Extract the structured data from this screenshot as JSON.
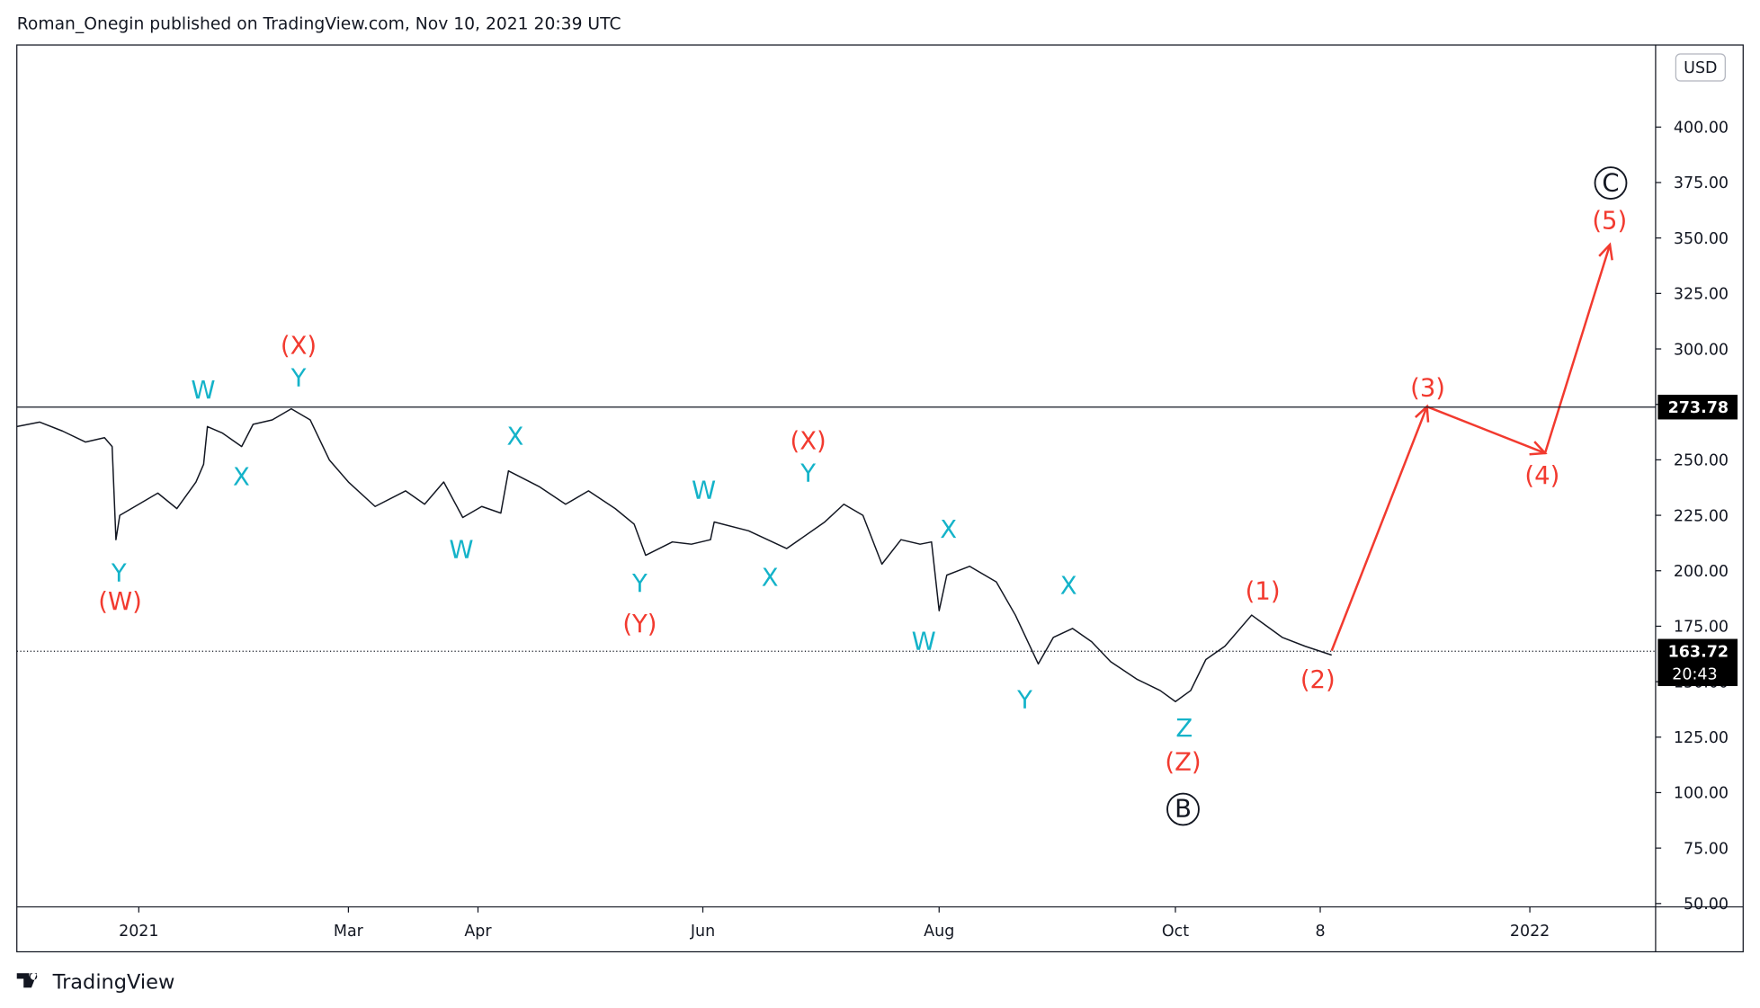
{
  "header": "Roman_Onegin published on TradingView.com, Nov 10, 2021 20:39 UTC",
  "footer": "TradingView",
  "chart_data": {
    "type": "line",
    "currency": "USD",
    "xlim": [
      -32,
      398
    ],
    "ylim": [
      50,
      437
    ],
    "xticks": [
      {
        "value": 0,
        "label": "2021"
      },
      {
        "value": 55,
        "label": "Mar"
      },
      {
        "value": 89,
        "label": "Apr"
      },
      {
        "value": 148,
        "label": "Jun"
      },
      {
        "value": 210,
        "label": "Aug"
      },
      {
        "value": 272,
        "label": "Oct"
      },
      {
        "value": 310,
        "label": "8"
      },
      {
        "value": 365,
        "label": "2022"
      }
    ],
    "yticks": [
      {
        "value": 50,
        "label": "50.00"
      },
      {
        "value": 75,
        "label": "75.00"
      },
      {
        "value": 100,
        "label": "100.00"
      },
      {
        "value": 125,
        "label": "125.00"
      },
      {
        "value": 150,
        "label": "150.00"
      },
      {
        "value": 175,
        "label": "175.00"
      },
      {
        "value": 200,
        "label": "200.00"
      },
      {
        "value": 225,
        "label": "225.00"
      },
      {
        "value": 250,
        "label": "250.00"
      },
      {
        "value": 275,
        "label": "275.00"
      },
      {
        "value": 300,
        "label": "300.00"
      },
      {
        "value": 325,
        "label": "325.00"
      },
      {
        "value": 350,
        "label": "350.00"
      },
      {
        "value": 375,
        "label": "375.00"
      },
      {
        "value": 400,
        "label": "400.00"
      }
    ],
    "series": [
      {
        "color": "#131722",
        "x": [
          -32,
          -26,
          -20,
          -14,
          -9,
          -7,
          -6,
          -5,
          0,
          5,
          10,
          15,
          17,
          18,
          22,
          27,
          30,
          35,
          40,
          45,
          50,
          55,
          62,
          70,
          75,
          80,
          85,
          90,
          95,
          97,
          105,
          112,
          118,
          125,
          130,
          133,
          140,
          145,
          150,
          151,
          160,
          170,
          180,
          185,
          190,
          195,
          200,
          205,
          208,
          210,
          212,
          218,
          225,
          230,
          236,
          240,
          245,
          250,
          255,
          262,
          268,
          272,
          276,
          280,
          285,
          292,
          300,
          306,
          313
        ],
        "values": [
          265,
          267,
          263,
          258,
          260,
          256,
          214,
          225,
          230,
          235,
          228,
          240,
          248,
          265,
          262,
          256,
          266,
          268,
          273,
          268,
          250,
          240,
          229,
          236,
          230,
          240,
          224,
          229,
          226,
          245,
          238,
          230,
          236,
          228,
          221,
          207,
          213,
          212,
          214,
          222,
          218,
          210,
          222,
          230,
          225,
          203,
          214,
          212,
          213,
          182,
          198,
          202,
          195,
          180,
          158,
          170,
          174,
          168,
          159,
          151,
          146,
          141,
          146,
          160,
          166,
          180,
          170,
          166,
          162
        ]
      },
      {
        "color": "#f23a2f",
        "x": [
          313,
          338,
          369,
          386
        ],
        "values": [
          164,
          274,
          253,
          347
        ]
      }
    ],
    "hlines": [
      {
        "value": 273.78,
        "label": "273.78"
      },
      {
        "value": 163.72,
        "label": "163.72",
        "time": "20:43"
      }
    ],
    "annotations": [
      {
        "text": "W",
        "color": "#14b3c9"
      },
      {
        "text": "(X)",
        "color": "#f23a2f"
      },
      {
        "text": "Y",
        "color": "#14b3c9"
      },
      {
        "text": "X",
        "color": "#14b3c9"
      },
      {
        "text": "Y",
        "color": "#14b3c9"
      },
      {
        "text": "(W)",
        "color": "#f23a2f"
      },
      {
        "text": "X",
        "color": "#14b3c9"
      },
      {
        "text": "W",
        "color": "#14b3c9"
      },
      {
        "text": "Y",
        "color": "#14b3c9"
      },
      {
        "text": "(Y)",
        "color": "#f23a2f"
      },
      {
        "text": "W",
        "color": "#14b3c9"
      },
      {
        "text": "X",
        "color": "#14b3c9"
      },
      {
        "text": "(X)",
        "color": "#f23a2f"
      },
      {
        "text": "Y",
        "color": "#14b3c9"
      },
      {
        "text": "X",
        "color": "#14b3c9"
      },
      {
        "text": "W",
        "color": "#14b3c9"
      },
      {
        "text": "X",
        "color": "#14b3c9"
      },
      {
        "text": "Y",
        "color": "#14b3c9"
      },
      {
        "text": "Z",
        "color": "#14b3c9"
      },
      {
        "text": "(Z)",
        "color": "#f23a2f"
      },
      {
        "text": "B",
        "color": "#131722"
      },
      {
        "text": "(1)",
        "color": "#f23a2f"
      },
      {
        "text": "(2)",
        "color": "#f23a2f"
      },
      {
        "text": "(3)",
        "color": "#f23a2f"
      },
      {
        "text": "(4)",
        "color": "#f23a2f"
      },
      {
        "text": "(5)",
        "color": "#f23a2f"
      },
      {
        "text": "C",
        "color": "#131722"
      }
    ]
  }
}
